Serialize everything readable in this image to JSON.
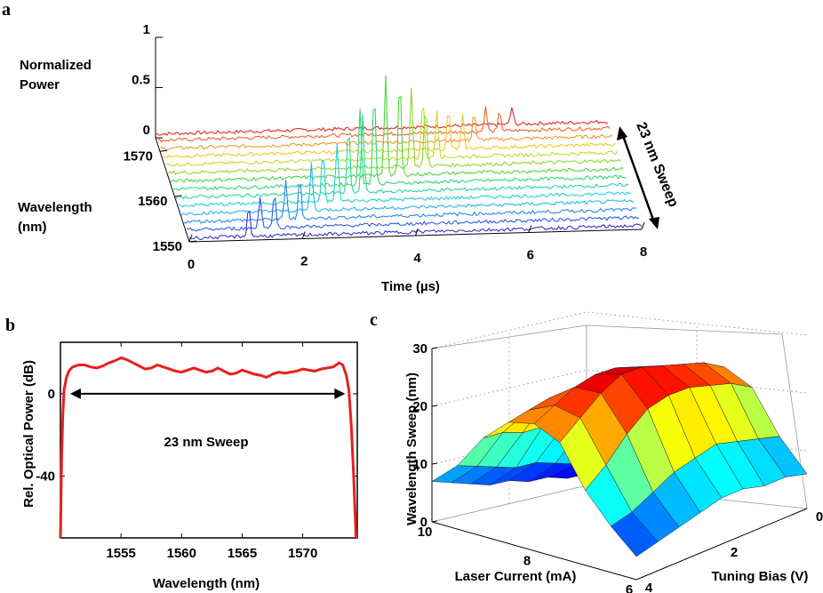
{
  "panels": {
    "a": "a",
    "b": "b",
    "c": "c"
  },
  "chart_data": [
    {
      "id": "a",
      "type": "line",
      "title": "",
      "zlabel_line1": "Normalized",
      "zlabel_line2": "Power",
      "ylabel_line1": "Wavelength",
      "ylabel_line2": "(nm)",
      "xlabel": "Time (µs)",
      "annotation": "23 nm Sweep",
      "x_ticks": [
        "0",
        "2",
        "4",
        "6",
        "8"
      ],
      "y_ticks": [
        "1550",
        "1560",
        "1570"
      ],
      "z_ticks": [
        "0",
        "0.5",
        "1"
      ],
      "xlim": [
        0,
        8
      ],
      "ylim": [
        1550,
        1573
      ],
      "zlim": [
        0,
        1
      ],
      "grid": false,
      "series_wavelengths": [
        1550,
        1551.8,
        1553.6,
        1555.4,
        1557.2,
        1559,
        1560.8,
        1562.6,
        1564.4,
        1566.2,
        1568,
        1569.8,
        1571.6,
        1573
      ],
      "series_colors": [
        "#3a2fd0",
        "#2f5ce6",
        "#2c86f0",
        "#25b4f0",
        "#20d0d8",
        "#22d8a0",
        "#2ed86a",
        "#4ad83c",
        "#8ad82c",
        "#c8d82a",
        "#f0c828",
        "#f29a28",
        "#f06428",
        "#e02a1e"
      ],
      "peak_train": {
        "pulse_times": [
          1.05,
          1.3,
          1.55,
          1.8,
          2.05,
          2.3,
          2.55,
          2.8,
          3.05,
          3.3,
          3.55,
          3.8,
          4.05,
          4.3,
          4.55,
          4.8,
          5.05,
          5.3,
          5.55,
          5.8,
          6.05,
          6.3
        ],
        "pulse_heights": [
          0.3,
          0.32,
          0.35,
          0.38,
          0.42,
          0.46,
          0.5,
          0.58,
          0.66,
          0.76,
          0.92,
          1.0,
          0.97,
          0.78,
          0.6,
          0.48,
          0.4,
          0.33,
          0.28,
          0.24,
          0.2,
          0.17
        ]
      }
    },
    {
      "id": "b",
      "type": "line",
      "title": "",
      "xlabel": "Wavelength (nm)",
      "ylabel": "Rel. Optical Power (dB)",
      "annotation": "23 nm Sweep",
      "x_ticks": [
        "1555",
        "1560",
        "1565",
        "1570"
      ],
      "y_ticks": [
        "-40",
        "0"
      ],
      "xlim": [
        1550,
        1574.5
      ],
      "ylim": [
        -70,
        25
      ],
      "grid": false,
      "color": "#e8201c",
      "series": [
        {
          "x": [
            1550,
            1550.1,
            1550.2,
            1550.3,
            1550.5,
            1550.7,
            1551,
            1551.5,
            1552,
            1552.5,
            1553,
            1553.5,
            1554,
            1554.5,
            1555,
            1555.5,
            1556,
            1556.5,
            1557,
            1557.5,
            1558,
            1558.5,
            1559,
            1559.5,
            1560,
            1560.5,
            1561,
            1561.5,
            1562,
            1562.5,
            1563,
            1563.5,
            1564,
            1564.5,
            1565,
            1565.5,
            1566,
            1566.5,
            1567,
            1567.5,
            1568,
            1568.5,
            1569,
            1569.5,
            1570,
            1570.5,
            1571,
            1571.5,
            1572,
            1572.5,
            1573,
            1573.3,
            1573.6,
            1573.8,
            1574,
            1574.2,
            1574.4
          ],
          "values": [
            -70,
            -30,
            -10,
            2,
            8,
            11,
            13,
            14,
            14,
            13,
            12.5,
            13.5,
            15,
            16,
            17.5,
            16.5,
            15,
            13.5,
            12,
            12.5,
            14,
            13,
            12,
            11,
            10.5,
            11.5,
            12.5,
            11.5,
            10.5,
            11,
            12.5,
            11,
            9.5,
            10,
            11.5,
            10.5,
            9.5,
            9,
            8,
            9.5,
            10.5,
            10,
            10.5,
            11,
            12,
            11.5,
            11,
            12,
            12.5,
            13,
            15,
            14,
            9,
            2,
            -15,
            -40,
            -70
          ]
        }
      ],
      "sweep_arrow": [
        1550.8,
        1573.5
      ],
      "sweep_arrow_level": 0
    },
    {
      "id": "c",
      "type": "surface",
      "title": "",
      "xlabel": "Laser Current (mA)",
      "ylabel": "Tuning Bias (V)",
      "zlabel": "Wavelength Sweep (nm)",
      "x_ticks": [
        "6",
        "8",
        "10"
      ],
      "y_ticks": [
        "0",
        "2",
        "4"
      ],
      "z_ticks": [
        "0",
        "10",
        "20",
        "30"
      ],
      "xlim": [
        6,
        10
      ],
      "ylim": [
        0,
        4
      ],
      "zlim": [
        0,
        30
      ],
      "grid": true,
      "colormap": "jet",
      "current_values": [
        10,
        9.5,
        9,
        8.5,
        8,
        7.5,
        7,
        6.5,
        6
      ],
      "bias_values": [
        0,
        0.5,
        1,
        1.5,
        2,
        2.5,
        3,
        3.5,
        4
      ],
      "z": [
        [
          2,
          4,
          10,
          16,
          21,
          23,
          20,
          12,
          6
        ],
        [
          2,
          5,
          12,
          18,
          23,
          25,
          22,
          13,
          7
        ],
        [
          3,
          6,
          13,
          19,
          24,
          26,
          23,
          14,
          7
        ],
        [
          3,
          7,
          14,
          21,
          26,
          27,
          24,
          15,
          8
        ],
        [
          4,
          8,
          15,
          22,
          27,
          28,
          24,
          14,
          8
        ],
        [
          4,
          8,
          16,
          22,
          27,
          28,
          23,
          13,
          7
        ],
        [
          5,
          9,
          16,
          23,
          26,
          26,
          20,
          11,
          6
        ],
        [
          6,
          10,
          17,
          22,
          24,
          23,
          16,
          9,
          5
        ],
        [
          7,
          11,
          17,
          21,
          22,
          20,
          13,
          8,
          4
        ]
      ]
    }
  ]
}
